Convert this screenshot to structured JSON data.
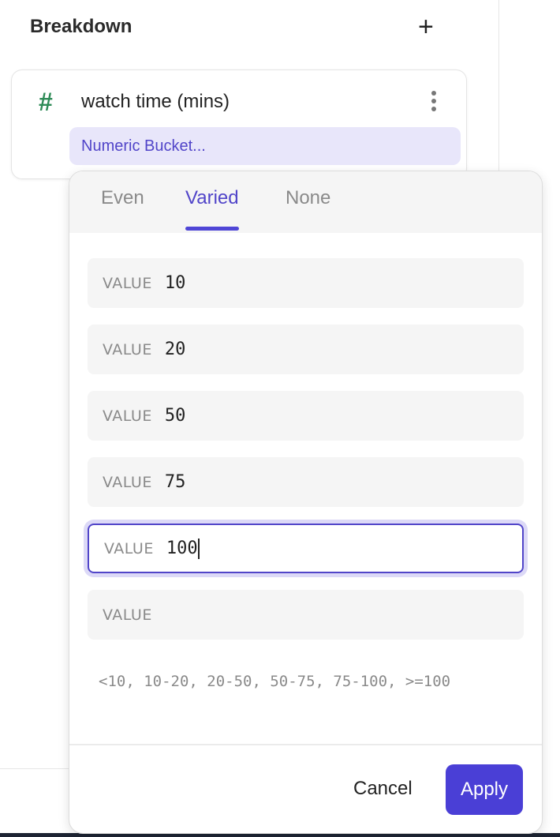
{
  "header": {
    "title": "Breakdown",
    "add_icon": "plus-icon"
  },
  "breakdown_item": {
    "type_icon": "hash-icon",
    "type_icon_color": "#2e8b57",
    "field": "watch time (mins)",
    "menu_icon": "kebab-icon",
    "bucket_label": "Numeric Bucket..."
  },
  "popover": {
    "tabs": [
      {
        "label": "Even"
      },
      {
        "label": "Varied",
        "active": true
      },
      {
        "label": "None"
      }
    ],
    "inputs": [
      {
        "label": "VALUE",
        "value": "10"
      },
      {
        "label": "VALUE",
        "value": "20"
      },
      {
        "label": "VALUE",
        "value": "50"
      },
      {
        "label": "VALUE",
        "value": "75"
      },
      {
        "label": "VALUE",
        "value": "100",
        "focused": true
      },
      {
        "label": "VALUE",
        "value": ""
      }
    ],
    "summary": "<10, 10-20, 20-50, 50-75, 75-100, >=100",
    "cancel_label": "Cancel",
    "apply_label": "Apply"
  },
  "colors": {
    "accent": "#4a3fd6",
    "chip_bg": "#e8e6fa"
  }
}
